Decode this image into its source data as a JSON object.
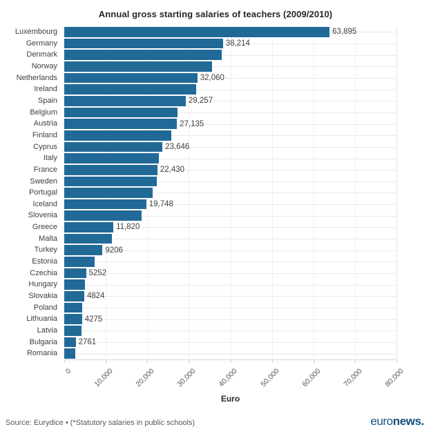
{
  "title": "Annual gross starting salaries of teachers (2009/2010)",
  "x_axis": {
    "label": "Euro",
    "ticks": [
      "0",
      "10,000",
      "20,000",
      "30,000",
      "40,000",
      "50,000",
      "60,000",
      "70,000",
      "80,000"
    ],
    "max": 80000
  },
  "footer": {
    "source": "Source: Eurydice • (*Statutory salaries in public schools)",
    "logo_regular": "euro",
    "logo_bold": "news."
  },
  "colors": {
    "bar": "#216a98",
    "logo": "#12537f",
    "grid": "#e9e9e9"
  },
  "chart_data": {
    "type": "bar",
    "orientation": "horizontal",
    "title": "Annual gross starting salaries of teachers (2009/2010)",
    "xlabel": "Euro",
    "xlim": [
      0,
      80000
    ],
    "x_ticks": [
      0,
      10000,
      20000,
      30000,
      40000,
      50000,
      60000,
      70000,
      80000
    ],
    "grid": true,
    "categories": [
      "Luxembourg",
      "Germany",
      "Denmark",
      "Norway",
      "Netherlands",
      "Ireland",
      "Spain",
      "Belgium",
      "Austria",
      "Finland",
      "Cyprus",
      "Italy",
      "France",
      "Sweden",
      "Portugal",
      "Iceland",
      "Slovenia",
      "Greece",
      "Malta",
      "Turkey",
      "Estonia",
      "Czechia",
      "Hungary",
      "Slovakia",
      "Poland",
      "Lithuania",
      "Latvia",
      "Bulgaria",
      "Romania"
    ],
    "values": [
      63895,
      38214,
      37900,
      35600,
      32060,
      31800,
      29257,
      27300,
      27135,
      25800,
      23646,
      22850,
      22430,
      22300,
      21250,
      19748,
      18700,
      11820,
      11450,
      9206,
      7270,
      5252,
      5040,
      4824,
      4380,
      4275,
      4210,
      2761,
      2660
    ],
    "data_labels": [
      "63,895",
      "38,214",
      "",
      "",
      "32,060",
      "",
      "29,257",
      "",
      "27,135",
      "",
      "23,646",
      "",
      "22,430",
      "",
      "",
      "19,748",
      "",
      "11,820",
      "",
      "9206",
      "",
      "5252",
      "",
      "4824",
      "",
      "4275",
      "",
      "2761",
      ""
    ]
  }
}
